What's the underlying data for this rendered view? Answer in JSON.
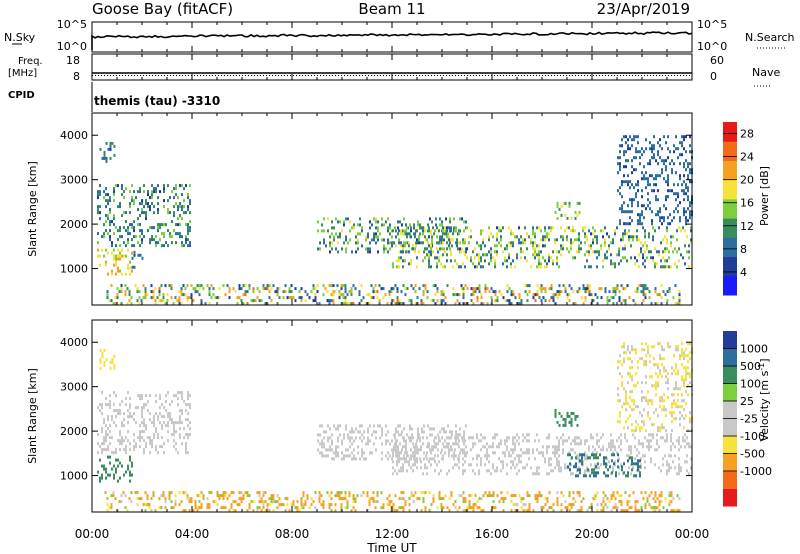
{
  "header": {
    "station": "Goose Bay (fitACF)",
    "beam": "Beam 11",
    "date": "23/Apr/2019"
  },
  "summary": {
    "nsky_label": "N.Sky",
    "nsky_ticks": [
      "10^5",
      "10^0"
    ],
    "nsearch_label": "N.Search",
    "nsearch_ticks": [
      "10^5",
      "10^0"
    ],
    "freq_label_1": "Freq.",
    "freq_label_2": "[MHz]",
    "freq_ticks": [
      "18",
      "8"
    ],
    "nave_label": "Nave",
    "nave_ticks": [
      "60",
      "0"
    ],
    "cpid_label": "CPID",
    "cpid_value": "themis (tau) -3310"
  },
  "colors": {
    "power": [
      "#1a1aff",
      "#1f3d99",
      "#2e6e9e",
      "#3a8c5a",
      "#7ccf3a",
      "#f5e23a",
      "#f5a023",
      "#f56a17",
      "#e61a1a"
    ],
    "velocity": [
      "#e61a1a",
      "#f56a17",
      "#f5a023",
      "#f5e23a",
      "#c8c8c8",
      "#c8c8c8",
      "#7ccf3a",
      "#3a8c5a",
      "#2e6e9e",
      "#1f3d99"
    ]
  },
  "chart_data": [
    {
      "type": "heatmap",
      "name": "power",
      "xlabel": "Time UT",
      "ylabel": "Slant Range [km]",
      "x_ticks": [
        "00:00",
        "04:00",
        "08:00",
        "12:00",
        "16:00",
        "20:00",
        "00:00"
      ],
      "y_ticks": [
        "1000",
        "2000",
        "3000",
        "4000"
      ],
      "xlim_hours": [
        0,
        24
      ],
      "ylim_km": [
        180,
        4500
      ],
      "colorbar_label": "Power [dB]",
      "colorbar_ticks": [
        "4",
        "8",
        "12",
        "16",
        "20",
        "24",
        "28"
      ],
      "colorbar_range": [
        0,
        30
      ],
      "regions": [
        {
          "t": [
            0.2,
            1.6
          ],
          "r": [
            900,
            1450
          ],
          "v": [
            14,
            22
          ]
        },
        {
          "t": [
            0.2,
            3.9
          ],
          "r": [
            1500,
            2900
          ],
          "v": [
            6,
            16
          ]
        },
        {
          "t": [
            0.3,
            0.9
          ],
          "r": [
            3400,
            3850
          ],
          "v": [
            6,
            12
          ]
        },
        {
          "t": [
            1.5,
            2.0
          ],
          "r": [
            1000,
            1400
          ],
          "v": [
            6,
            10
          ]
        },
        {
          "t": [
            9.0,
            15.0
          ],
          "r": [
            1400,
            2150
          ],
          "v": [
            6,
            18
          ]
        },
        {
          "t": [
            12.0,
            24.0
          ],
          "r": [
            1050,
            1950
          ],
          "v": [
            6,
            20
          ]
        },
        {
          "t": [
            21.0,
            24.0
          ],
          "r": [
            2000,
            4000
          ],
          "v": [
            6,
            10
          ]
        },
        {
          "t": [
            18.5,
            19.5
          ],
          "r": [
            2100,
            2500
          ],
          "v": [
            12,
            18
          ]
        },
        {
          "t": [
            0.5,
            23.5
          ],
          "r": [
            200,
            650
          ],
          "v": [
            4,
            24
          ]
        }
      ]
    },
    {
      "type": "heatmap",
      "name": "velocity",
      "xlabel": "Time UT",
      "ylabel": "Slant Range [km]",
      "x_ticks": [
        "00:00",
        "04:00",
        "08:00",
        "12:00",
        "16:00",
        "20:00",
        "00:00"
      ],
      "y_ticks": [
        "1000",
        "2000",
        "3000",
        "4000"
      ],
      "xlim_hours": [
        0,
        24
      ],
      "ylim_km": [
        180,
        4500
      ],
      "colorbar_label": "Velocity [m s^-1]",
      "colorbar_ticks": [
        "1000",
        "500",
        "100",
        "25",
        "-25",
        "-100",
        "-500",
        "-1000"
      ],
      "regions": [
        {
          "t": [
            0.2,
            1.6
          ],
          "r": [
            900,
            1450
          ],
          "v": [
            100,
            500
          ]
        },
        {
          "t": [
            0.2,
            3.9
          ],
          "r": [
            1500,
            2900
          ],
          "v": [
            -25,
            25
          ]
        },
        {
          "t": [
            0.3,
            0.9
          ],
          "r": [
            3400,
            3850
          ],
          "v": [
            -100,
            -25
          ]
        },
        {
          "t": [
            9.0,
            15.0
          ],
          "r": [
            1400,
            2150
          ],
          "v": [
            -25,
            25
          ]
        },
        {
          "t": [
            12.0,
            24.0
          ],
          "r": [
            1050,
            1950
          ],
          "v": [
            -25,
            25
          ]
        },
        {
          "t": [
            19.0,
            22.0
          ],
          "r": [
            1000,
            1500
          ],
          "v": [
            100,
            1000
          ]
        },
        {
          "t": [
            21.0,
            24.0
          ],
          "r": [
            2000,
            4000
          ],
          "v": [
            -100,
            25
          ]
        },
        {
          "t": [
            18.5,
            19.5
          ],
          "r": [
            2100,
            2500
          ],
          "v": [
            100,
            500
          ]
        },
        {
          "t": [
            0.5,
            23.5
          ],
          "r": [
            200,
            650
          ],
          "v": [
            -500,
            100
          ]
        }
      ]
    }
  ]
}
